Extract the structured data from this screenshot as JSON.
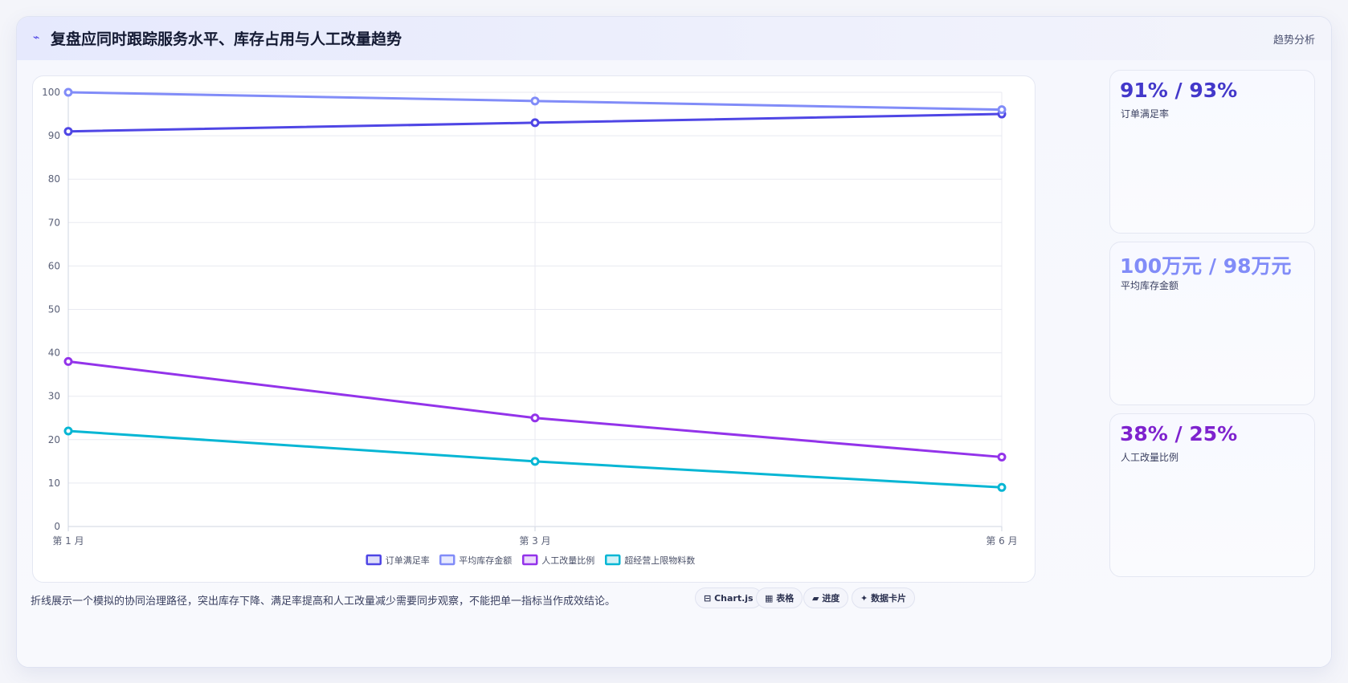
{
  "header": {
    "icon": "⌁",
    "title": "复盘应同时跟踪服务水平、库存占用与人工改量趋势",
    "right_label": "趋势分析"
  },
  "chart_data": {
    "type": "line",
    "x": [
      "第 1 月",
      "第 3 月",
      "第 6 月"
    ],
    "ylim": [
      0,
      100
    ],
    "yticks": [
      0,
      10,
      20,
      30,
      40,
      50,
      60,
      70,
      80,
      90,
      100
    ],
    "grid": true,
    "legend": "bottom",
    "series": [
      {
        "name": "订单满足率",
        "values": [
          91,
          93,
          95
        ],
        "color": "#4f46e5"
      },
      {
        "name": "平均库存金额",
        "values": [
          100,
          98,
          96
        ],
        "color": "#818cf8"
      },
      {
        "name": "人工改量比例",
        "values": [
          38,
          25,
          16
        ],
        "color": "#9333ea"
      },
      {
        "name": "超经营上限物料数",
        "values": [
          22,
          15,
          9
        ],
        "color": "#06b6d4"
      }
    ]
  },
  "kpis": [
    {
      "value": "91% / 93%",
      "label": "订单满足率",
      "color": "#4338ca"
    },
    {
      "value": "100万元 / 98万元",
      "label": "平均库存金额",
      "color": "#818cf8"
    },
    {
      "value": "38% / 25%",
      "label": "人工改量比例",
      "color": "#7e22ce"
    }
  ],
  "footer": {
    "note": "折线展示一个模拟的协同治理路径，突出库存下降、满足率提高和人工改量减少需要同步观察，不能把单一指标当作成效结论。",
    "pills": [
      {
        "icon": "⊟",
        "label": "Chart.js"
      },
      {
        "icon": "▦",
        "label": "表格"
      },
      {
        "icon": "▰",
        "label": "进度"
      },
      {
        "icon": "✦",
        "label": "数据卡片"
      }
    ]
  }
}
